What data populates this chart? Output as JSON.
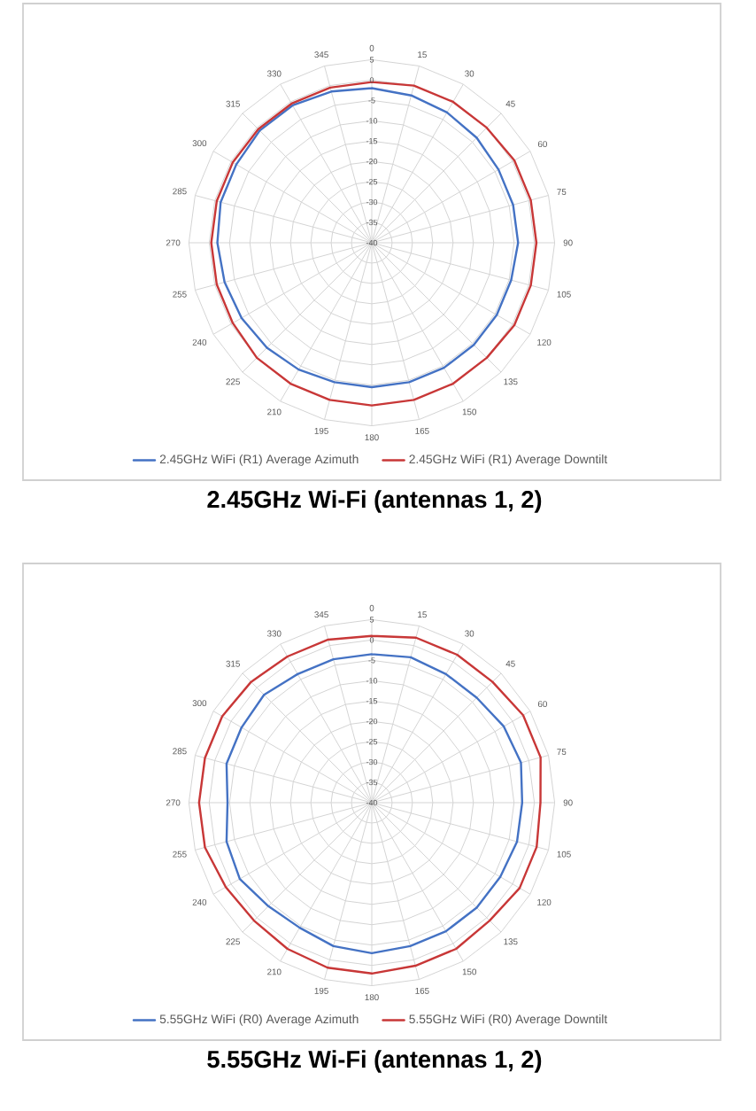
{
  "chart_data": [
    {
      "type": "radar",
      "title": "2.45GHz Wi-Fi (antennas 1, 2)",
      "categories": [
        "0",
        "15",
        "30",
        "45",
        "60",
        "75",
        "90",
        "105",
        "120",
        "135",
        "150",
        "165",
        "180",
        "195",
        "210",
        "225",
        "240",
        "255",
        "270",
        "285",
        "300",
        "315",
        "330",
        "345"
      ],
      "series": [
        {
          "name": "2.45GHz WiFi (R1) Average Azimuth",
          "color": "#4472c4",
          "values": [
            -2,
            -2.5,
            -3,
            -3.5,
            -4,
            -4,
            -4,
            -4.5,
            -4.5,
            -4.5,
            -4.5,
            -4.5,
            -4.5,
            -4.5,
            -4,
            -3.5,
            -3,
            -2.5,
            -2,
            -1.5,
            -1.5,
            -1,
            -1,
            -1.5
          ]
        },
        {
          "name": "2.45GHz WiFi (R1) Average Downtilt",
          "color": "#c83737",
          "values": [
            -0.5,
            0,
            0,
            0,
            0.5,
            0.5,
            0.5,
            0.5,
            0.5,
            0,
            0,
            0,
            0,
            0,
            0,
            0,
            -0.5,
            -0.5,
            -0.5,
            -0.5,
            -0.5,
            -0.5,
            -0.5,
            -0.5
          ]
        }
      ],
      "ylim": [
        -40,
        5
      ],
      "yticks": [
        -40,
        -35,
        -30,
        -25,
        -20,
        -15,
        -10,
        -5,
        0,
        5
      ],
      "grid": true,
      "legend": "bottom"
    },
    {
      "type": "radar",
      "title": "5.55GHz Wi-Fi (antennas 1, 2)",
      "categories": [
        "0",
        "15",
        "30",
        "45",
        "60",
        "75",
        "90",
        "105",
        "120",
        "135",
        "150",
        "165",
        "180",
        "195",
        "210",
        "225",
        "240",
        "255",
        "270",
        "285",
        "300",
        "315",
        "330",
        "345"
      ],
      "series": [
        {
          "name": "5.55GHz WiFi (R0) Average Azimuth",
          "color": "#4472c4",
          "values": [
            -3.5,
            -3,
            -3.5,
            -3.5,
            -2.5,
            -2,
            -3,
            -3,
            -3.5,
            -3.5,
            -3.5,
            -3.5,
            -3,
            -3.5,
            -4.5,
            -4,
            -2.5,
            -3,
            -4.5,
            -3,
            -3,
            -2.5,
            -3.5,
            -3.5
          ]
        },
        {
          "name": "5.55GHz WiFi (R0) Average Downtilt",
          "color": "#c83737",
          "values": [
            1,
            2,
            2,
            2,
            3,
            3,
            1.5,
            2,
            2,
            1,
            1.5,
            1.5,
            2,
            2,
            1.5,
            1,
            1.5,
            2.5,
            2.5,
            2.5,
            2.5,
            2,
            1.5,
            1.5
          ]
        }
      ],
      "ylim": [
        -40,
        5
      ],
      "yticks": [
        -40,
        -35,
        -30,
        -25,
        -20,
        -15,
        -10,
        -5,
        0,
        5
      ],
      "grid": true,
      "legend": "bottom"
    }
  ]
}
